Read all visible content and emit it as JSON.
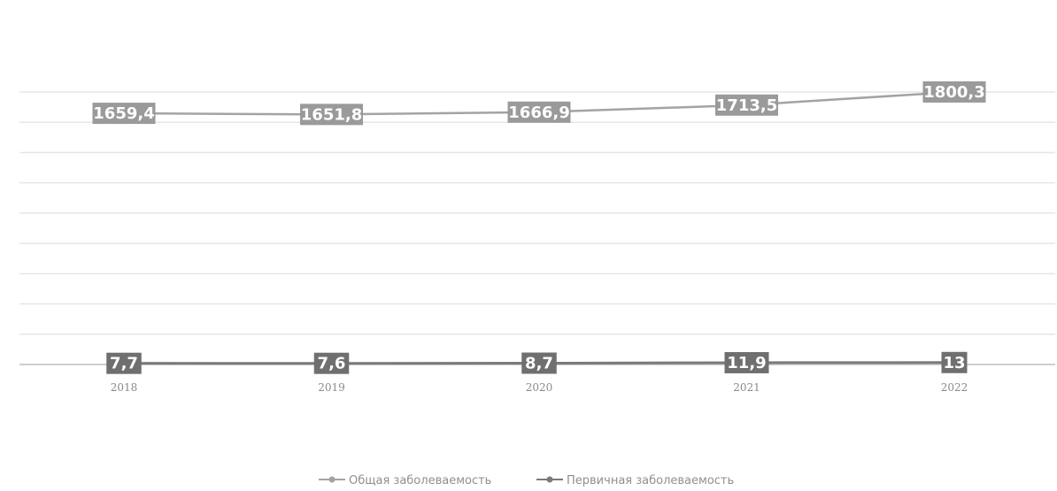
{
  "chart_data": {
    "type": "line",
    "categories": [
      "2018",
      "2019",
      "2020",
      "2021",
      "2022"
    ],
    "series": [
      {
        "name": "Общая заболеваемость",
        "values": [
          1659.4,
          1651.8,
          1666.9,
          1713.5,
          1800.3
        ],
        "labels": [
          "1659,4",
          "1651,8",
          "1666,9",
          "1713,5",
          "1800,3"
        ],
        "color": "#a3a3a3",
        "label_color": "#9a9a9a"
      },
      {
        "name": "Первичная заболеваемость",
        "values": [
          7.7,
          7.6,
          8.7,
          11.9,
          13
        ],
        "labels": [
          "7,7",
          "7,6",
          "8,7",
          "11,9",
          "13"
        ],
        "color": "#7a7a7a",
        "label_color": "#6f6f6f"
      }
    ],
    "title": "",
    "xlabel": "",
    "ylabel": "",
    "ylim": [
      0,
      1800
    ],
    "grid": true,
    "legend": "bottom"
  }
}
